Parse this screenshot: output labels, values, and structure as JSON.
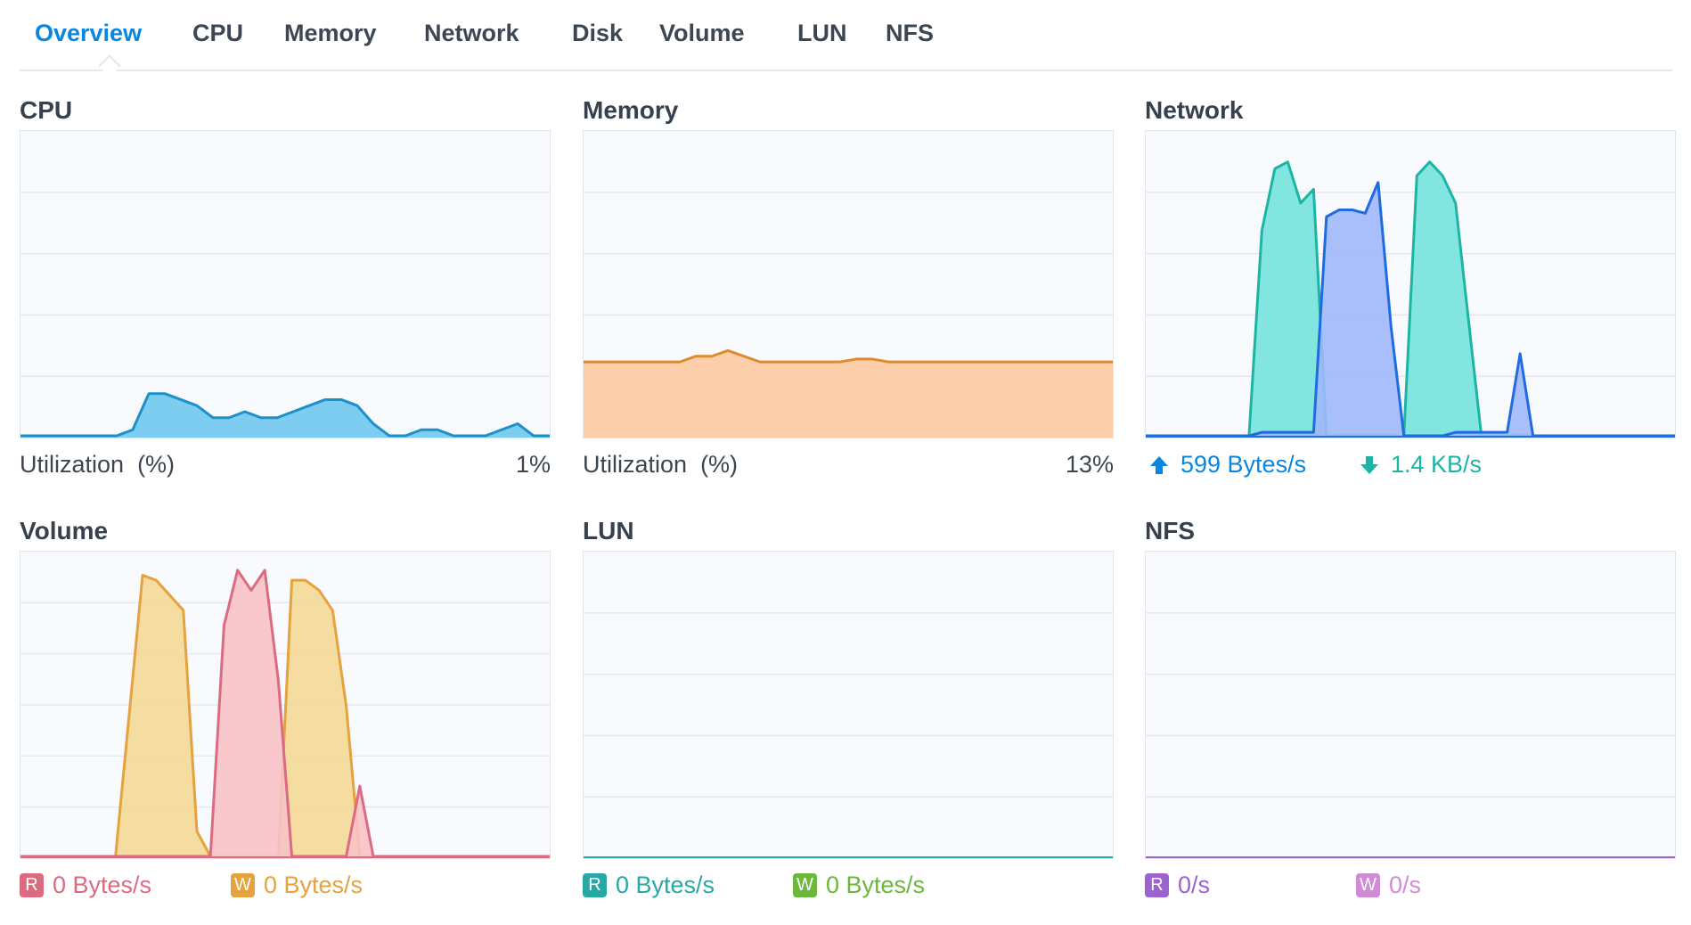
{
  "tabs": [
    {
      "label": "Overview",
      "active": true
    },
    {
      "label": "CPU"
    },
    {
      "label": "Memory"
    },
    {
      "label": "Network"
    },
    {
      "label": "Disk"
    },
    {
      "label": "Volume"
    },
    {
      "label": "LUN"
    },
    {
      "label": "NFS"
    }
  ],
  "colors": {
    "accent": "#0b86e0",
    "cpu": "#1d8fc9",
    "cpu_fill": "#6fc8ee",
    "memory": "#e08a2a",
    "memory_fill": "#fcc9a0",
    "net_down": "#1cb5a5",
    "net_down_fill": "#74e2db",
    "net_up": "#1e6ce0",
    "net_up_fill": "#9fb8fb",
    "vol_read": "#dc6b82",
    "vol_read_fill": "#f7c2c8",
    "vol_write": "#e5a23e",
    "vol_write_fill": "#f4d896",
    "lun_read": "#26a9a4",
    "lun_write": "#6bb83c",
    "nfs_read": "#9c63d0",
    "nfs_write": "#d28ad8"
  },
  "cpu": {
    "title": "CPU",
    "label": "Utilization",
    "unit": "(%)",
    "value": "1%",
    "chart_data": {
      "type": "area",
      "ylim": [
        0,
        5
      ],
      "values": [
        0,
        0,
        0,
        0,
        0,
        0,
        0,
        0.1,
        0.7,
        0.7,
        0.6,
        0.5,
        0.3,
        0.3,
        0.4,
        0.3,
        0.3,
        0.4,
        0.5,
        0.6,
        0.6,
        0.5,
        0.2,
        0,
        0,
        0.1,
        0.1,
        0,
        0,
        0,
        0.1,
        0.2,
        0,
        0
      ]
    }
  },
  "memory": {
    "title": "Memory",
    "label": "Utilization",
    "unit": "(%)",
    "value": "13%",
    "chart_data": {
      "type": "area",
      "ylim": [
        0,
        100
      ],
      "values": [
        13,
        13,
        13,
        13,
        13,
        13,
        13,
        14,
        14,
        15,
        14,
        13,
        13,
        13,
        13,
        13,
        13,
        13.5,
        13.5,
        13,
        13,
        13,
        13,
        13,
        13,
        13,
        13,
        13,
        13,
        13,
        13,
        13,
        13,
        13
      ]
    }
  },
  "network": {
    "title": "Network",
    "upload_value": "599 Bytes/s",
    "download_value": "1.4 KB/s",
    "up_icon": "upload-arrow-icon",
    "down_icon": "download-arrow-icon",
    "chart_data": {
      "type": "area",
      "ylim": [
        0,
        4.4
      ],
      "series": [
        {
          "values": [
            0,
            0,
            0,
            0,
            0,
            0,
            0,
            0,
            0,
            0.05,
            0.05,
            0.05,
            0.05,
            0.05,
            3.2,
            3.3,
            3.3,
            3.25,
            3.7,
            1.6,
            0,
            0,
            0,
            0,
            0.05,
            0.05,
            0.05,
            0.05,
            0.05,
            1.2,
            0,
            0,
            0,
            0,
            0,
            0,
            0,
            0,
            0,
            0,
            0,
            0
          ]
        },
        {
          "values": [
            0,
            0,
            0,
            0,
            0,
            0,
            0,
            0,
            0,
            3.0,
            3.9,
            4.0,
            3.4,
            3.6,
            0,
            0,
            0,
            0,
            0,
            0,
            0,
            3.8,
            4.0,
            3.8,
            3.4,
            1.7,
            0,
            0,
            0,
            0,
            0,
            0,
            0,
            0,
            0,
            0,
            0,
            0,
            0,
            0,
            0,
            0
          ]
        }
      ]
    }
  },
  "volume": {
    "title": "Volume",
    "read_badge": "R",
    "read_value": "0 Bytes/s",
    "write_badge": "W",
    "write_value": "0 Bytes/s",
    "chart_data": {
      "type": "area",
      "ylim": [
        0,
        6
      ],
      "series": [
        {
          "values": [
            0,
            0,
            0,
            0,
            0,
            0,
            0,
            0,
            0,
            0,
            0,
            0,
            0,
            0,
            0,
            4.6,
            5.7,
            5.3,
            5.7,
            3.5,
            0,
            0,
            0,
            0,
            0,
            1.4,
            0,
            0,
            0,
            0,
            0,
            0,
            0,
            0,
            0,
            0,
            0,
            0,
            0,
            0
          ]
        },
        {
          "values": [
            0,
            0,
            0,
            0,
            0,
            0,
            0,
            0,
            2.8,
            5.6,
            5.5,
            5.2,
            4.9,
            0.5,
            0,
            0,
            0,
            0,
            0,
            0,
            5.5,
            5.5,
            5.3,
            4.9,
            3.0,
            0,
            0,
            0,
            0,
            0,
            0,
            0,
            0,
            0,
            0,
            0,
            0,
            0,
            0,
            0
          ]
        }
      ]
    }
  },
  "lun": {
    "title": "LUN",
    "read_badge": "R",
    "read_value": "0 Bytes/s",
    "write_badge": "W",
    "write_value": "0 Bytes/s"
  },
  "nfs": {
    "title": "NFS",
    "read_badge": "R",
    "read_value": "0/s",
    "write_badge": "W",
    "write_value": "0/s"
  }
}
